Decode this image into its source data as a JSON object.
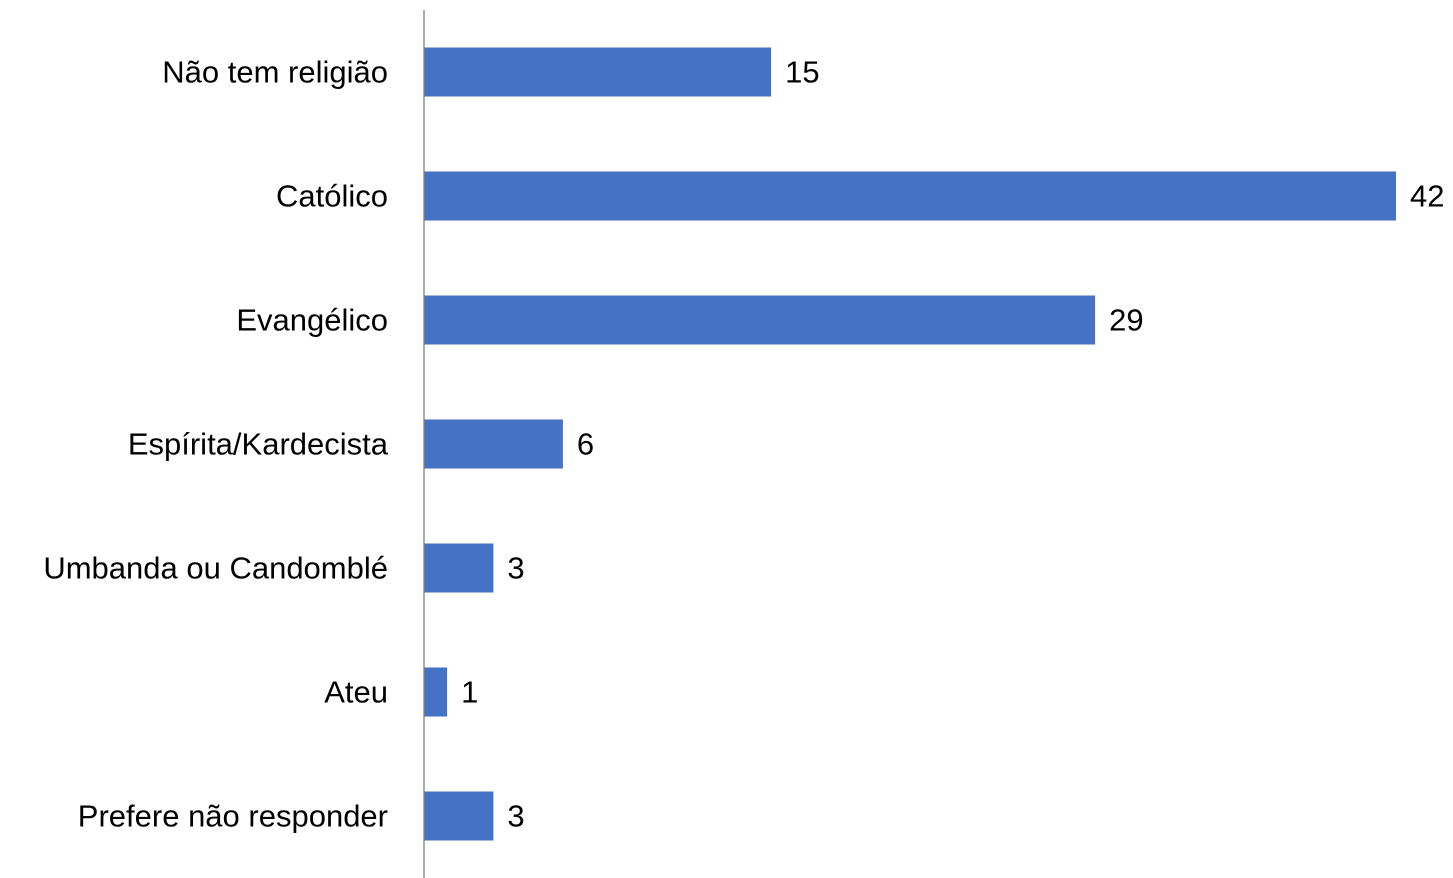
{
  "chart_data": {
    "type": "bar",
    "orientation": "horizontal",
    "categories": [
      "Não tem religião",
      "Católico",
      "Evangélico",
      "Espírita/Kardecista",
      "Umbanda ou Candomblé",
      "Ateu",
      "Prefere não responder"
    ],
    "values": [
      15,
      42,
      29,
      6,
      3,
      1,
      3
    ],
    "data_labels": [
      "15",
      "42",
      "29",
      "6",
      "3",
      "1",
      "3"
    ],
    "title": "",
    "xlabel": "",
    "ylabel": "",
    "xlim": [
      0,
      42
    ],
    "grid": false,
    "legend": "none",
    "colors": {
      "bar": "#4472C4",
      "axis": "#808080",
      "text": "#000000"
    }
  }
}
